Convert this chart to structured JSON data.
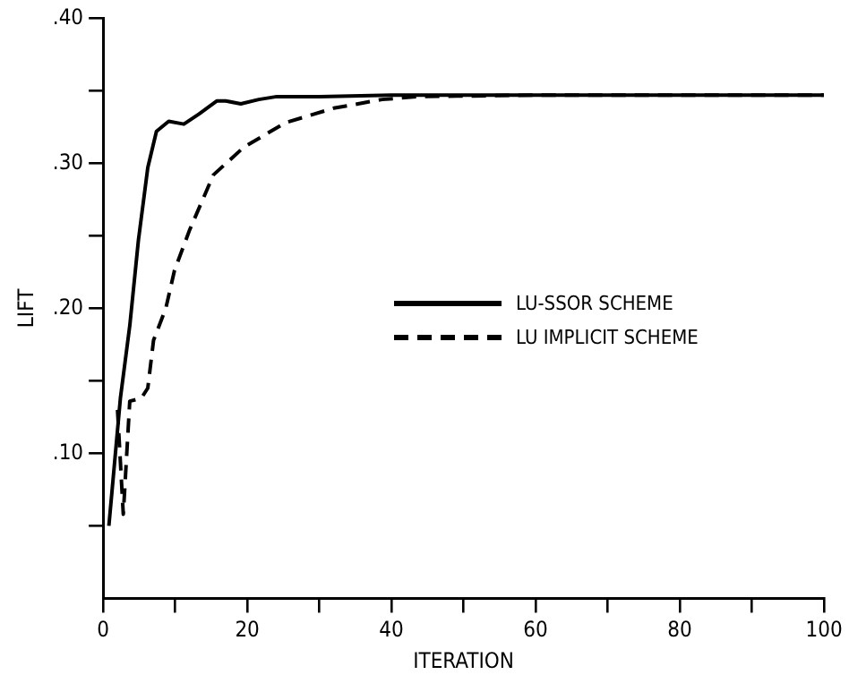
{
  "chart_data": {
    "type": "line",
    "xlabel": "ITERATION",
    "ylabel": "LIFT",
    "xlim": [
      0,
      100
    ],
    "xticks": [
      0,
      {
        "value": 10,
        "label": null
      },
      20,
      {
        "value": 30,
        "label": null
      },
      40,
      {
        "value": 50,
        "label": null
      },
      60,
      {
        "value": 70,
        "label": null
      },
      80,
      {
        "value": 90,
        "label": null
      },
      100
    ],
    "ylim": [
      0,
      0.4
    ],
    "yticks": [
      {
        "value": 0.05,
        "label": null
      },
      {
        "value": 0.1,
        "label": ".10"
      },
      {
        "value": 0.15,
        "label": null
      },
      {
        "value": 0.2,
        "label": ".20"
      },
      {
        "value": 0.25,
        "label": null
      },
      {
        "value": 0.3,
        "label": ".30"
      },
      {
        "value": 0.35,
        "label": null
      },
      {
        "value": 0.4,
        "label": ".40"
      }
    ],
    "grid": false,
    "legend": "right",
    "marker": "none",
    "series": [
      {
        "name": "LU-SSOR SCHEME",
        "color": "#000000",
        "line_style": "solid",
        "x": [
          0.8,
          2.4,
          3.7,
          4.9,
          6.2,
          7.4,
          9.1,
          11.2,
          13.3,
          15.8,
          17,
          19.1,
          21.6,
          24.1,
          30,
          40,
          60,
          80,
          100
        ],
        "values": [
          0.05,
          0.138,
          0.188,
          0.247,
          0.297,
          0.322,
          0.329,
          0.327,
          0.334,
          0.343,
          0.343,
          0.341,
          0.344,
          0.346,
          0.346,
          0.347,
          0.347,
          0.347,
          0.347
        ]
      },
      {
        "name": "LU IMPLICIT SCHEME",
        "color": "#000000",
        "line_style": "dashed",
        "x": [
          2.0,
          2.8,
          3.7,
          5.3,
          6.2,
          7,
          8.7,
          9.9,
          12,
          15.3,
          19.5,
          25.3,
          32,
          38.7,
          43.7,
          60,
          80,
          100
        ],
        "values": [
          0.13,
          0.058,
          0.136,
          0.138,
          0.145,
          0.178,
          0.2,
          0.226,
          0.254,
          0.292,
          0.311,
          0.328,
          0.338,
          0.344,
          0.346,
          0.347,
          0.347,
          0.347
        ]
      }
    ]
  }
}
